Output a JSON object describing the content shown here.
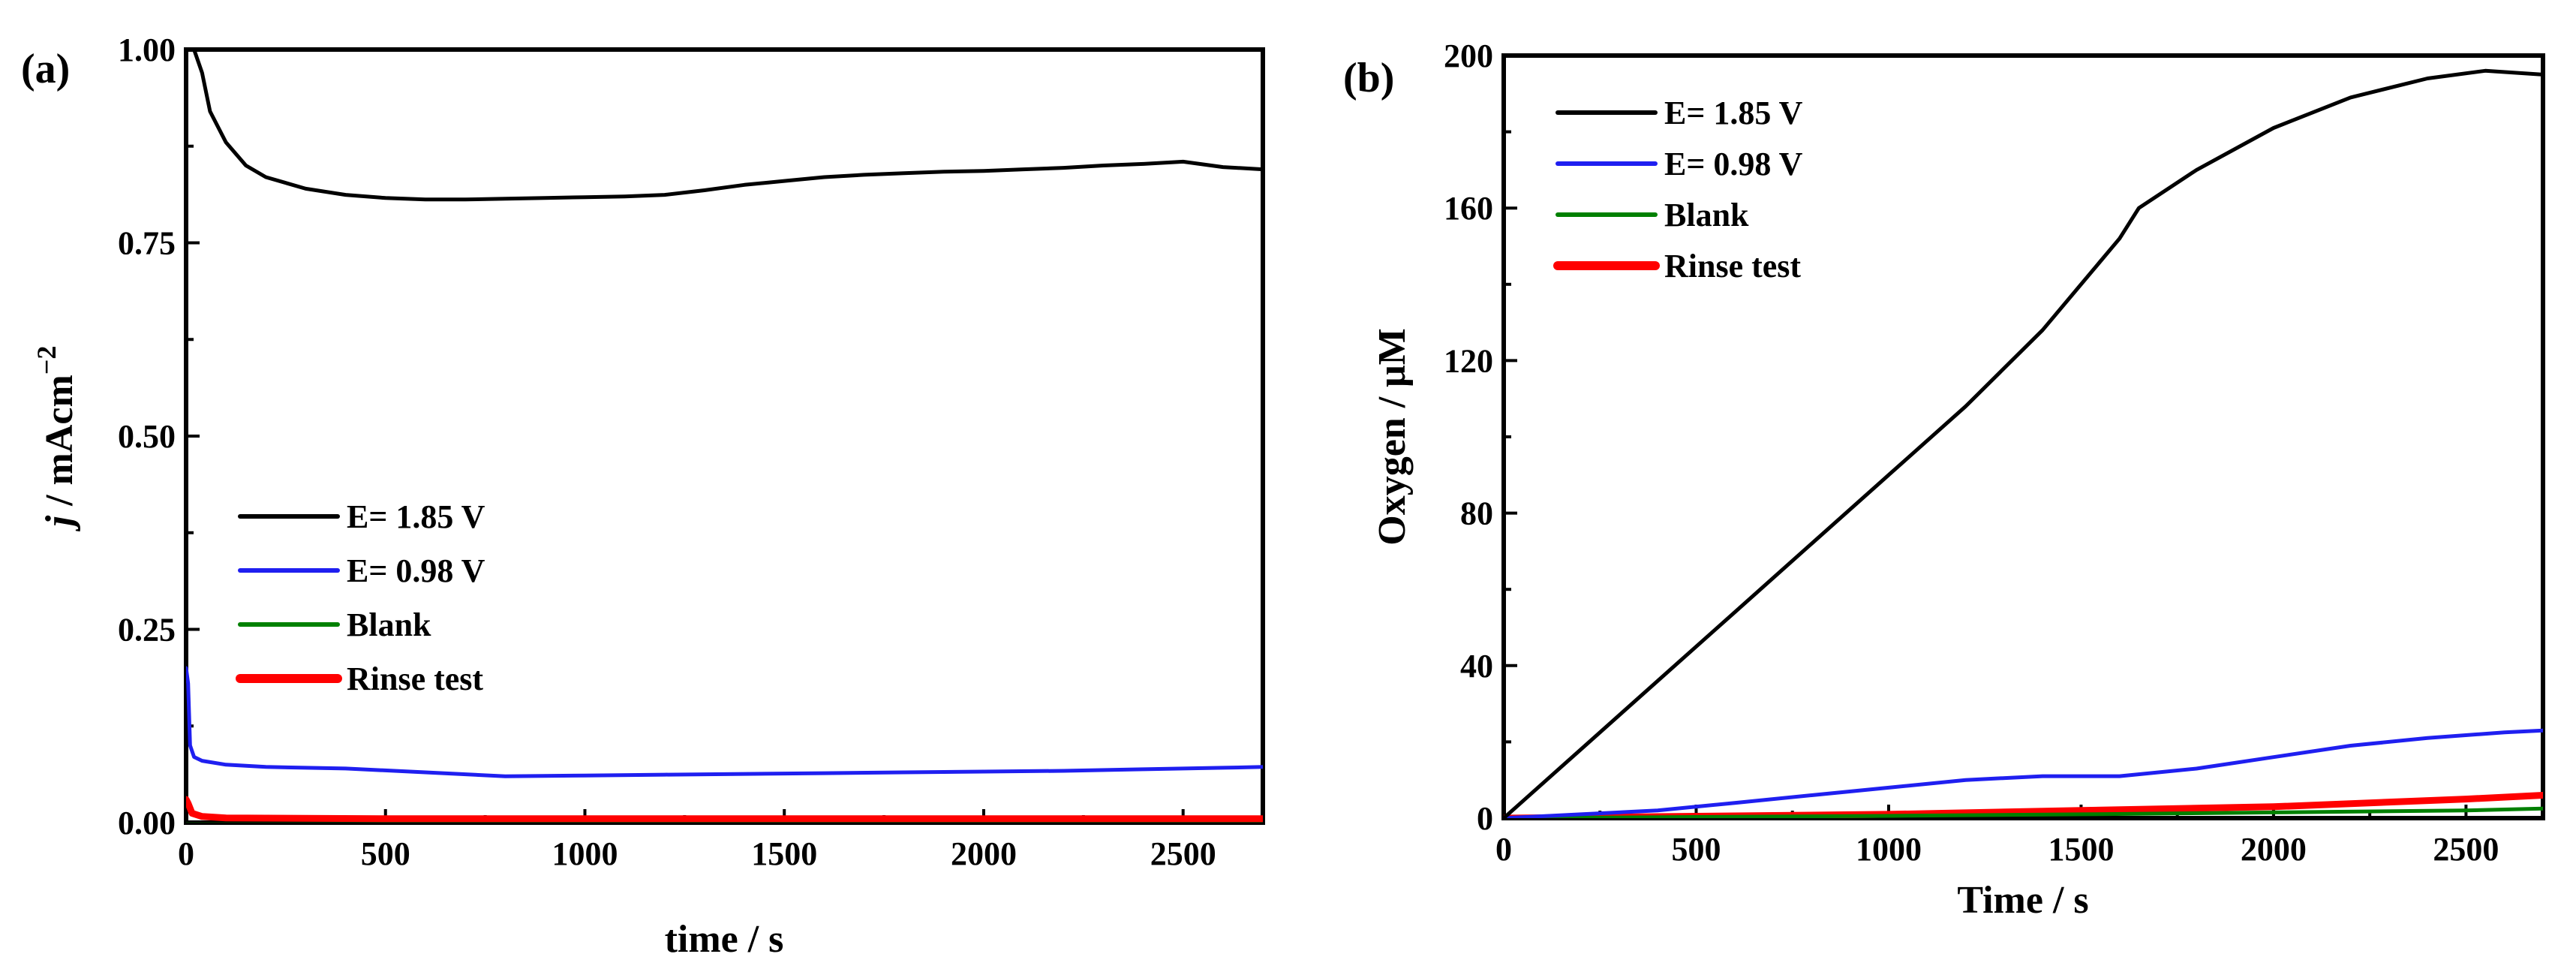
{
  "chart_data": [
    {
      "type": "line",
      "panel_label": "(a)",
      "xlabel": "time / s",
      "ylabel_italic": "j",
      "ylabel_rest": " / mAcm",
      "ylabel_sup": "−2",
      "xlim": [
        0,
        2700
      ],
      "ylim": [
        0,
        1.0
      ],
      "x_ticks": [
        0,
        500,
        1000,
        1500,
        2000,
        2500
      ],
      "x_tick_labels": [
        "0",
        "500",
        "1000",
        "1500",
        "2000",
        "2500"
      ],
      "y_ticks": [
        0,
        0.25,
        0.5,
        0.75,
        1.0
      ],
      "y_tick_labels": [
        "0.00",
        "0.25",
        "0.50",
        "0.75",
        "1.00"
      ],
      "legend_position": "center-left",
      "series": [
        {
          "name": "E= 1.85 V",
          "color": "#000000",
          "width": "thin",
          "x": [
            0,
            20,
            40,
            60,
            100,
            150,
            200,
            300,
            400,
            500,
            600,
            700,
            800,
            900,
            1000,
            1100,
            1200,
            1300,
            1400,
            1500,
            1600,
            1700,
            1800,
            1900,
            2000,
            2100,
            2200,
            2300,
            2400,
            2500,
            2600,
            2700
          ],
          "y": [
            1.0,
            1.0,
            0.97,
            0.92,
            0.88,
            0.85,
            0.835,
            0.82,
            0.812,
            0.808,
            0.806,
            0.806,
            0.807,
            0.808,
            0.809,
            0.81,
            0.812,
            0.818,
            0.825,
            0.83,
            0.835,
            0.838,
            0.84,
            0.842,
            0.843,
            0.845,
            0.847,
            0.85,
            0.852,
            0.855,
            0.848,
            0.845
          ]
        },
        {
          "name": "E= 0.98 V",
          "color": "#1f1ff0",
          "width": "thin",
          "x": [
            0,
            5,
            10,
            20,
            40,
            100,
            200,
            400,
            600,
            800,
            1000,
            1200,
            1400,
            1600,
            1800,
            2000,
            2200,
            2400,
            2600,
            2700
          ],
          "y": [
            0.2,
            0.18,
            0.1,
            0.085,
            0.08,
            0.075,
            0.072,
            0.07,
            0.065,
            0.06,
            0.061,
            0.062,
            0.063,
            0.064,
            0.065,
            0.066,
            0.067,
            0.069,
            0.071,
            0.072
          ]
        },
        {
          "name": "Blank",
          "color": "#008000",
          "width": "thin",
          "x": [
            0,
            500,
            1000,
            1500,
            2000,
            2500,
            2700
          ],
          "y": [
            -0.002,
            -0.002,
            -0.002,
            -0.002,
            -0.002,
            -0.002,
            -0.002
          ]
        },
        {
          "name": "Rinse test",
          "color": "#ff0000",
          "width": "thick",
          "x": [
            0,
            5,
            15,
            40,
            100,
            500,
            1000,
            1500,
            2000,
            2500,
            2700
          ],
          "y": [
            0.03,
            0.025,
            0.012,
            0.008,
            0.006,
            0.005,
            0.005,
            0.005,
            0.005,
            0.005,
            0.005
          ]
        }
      ]
    },
    {
      "type": "line",
      "panel_label": "(b)",
      "xlabel": "Time / s",
      "ylabel": "Oxygen / μM",
      "xlim": [
        0,
        2700
      ],
      "ylim": [
        0,
        200
      ],
      "x_ticks": [
        0,
        500,
        1000,
        1500,
        2000,
        2500
      ],
      "x_tick_labels": [
        "0",
        "500",
        "1000",
        "1500",
        "2000",
        "2500"
      ],
      "y_ticks": [
        0,
        40,
        80,
        120,
        160,
        200
      ],
      "y_tick_labels": [
        "0",
        "40",
        "80",
        "120",
        "160",
        "200"
      ],
      "legend_position": "top-left",
      "series": [
        {
          "name": "E= 1.85 V",
          "color": "#000000",
          "width": "thin",
          "x": [
            0,
            200,
            400,
            600,
            800,
            1000,
            1200,
            1400,
            1600,
            1650,
            1800,
            2000,
            2200,
            2400,
            2550,
            2700
          ],
          "y": [
            0,
            18,
            36,
            54,
            72,
            90,
            108,
            128,
            152,
            160,
            170,
            181,
            189,
            194,
            196,
            195
          ]
        },
        {
          "name": "E= 0.98 V",
          "color": "#1f1ff0",
          "width": "thin",
          "x": [
            0,
            200,
            400,
            600,
            800,
            1000,
            1200,
            1400,
            1600,
            1800,
            2000,
            2200,
            2400,
            2600,
            2700
          ],
          "y": [
            0,
            1,
            2,
            4,
            6,
            8,
            10,
            11,
            11,
            13,
            16,
            19,
            21,
            22.5,
            23
          ]
        },
        {
          "name": "Blank",
          "color": "#008000",
          "width": "thin",
          "x": [
            0,
            500,
            1000,
            1500,
            2000,
            2500,
            2700
          ],
          "y": [
            0,
            0.3,
            0.6,
            1,
            1.5,
            2,
            2.5
          ]
        },
        {
          "name": "Rinse test",
          "color": "#ff0000",
          "width": "thick",
          "x": [
            0,
            500,
            1000,
            1500,
            2000,
            2500,
            2700
          ],
          "y": [
            0,
            0.5,
            1,
            2,
            3,
            5,
            6
          ]
        }
      ]
    }
  ]
}
